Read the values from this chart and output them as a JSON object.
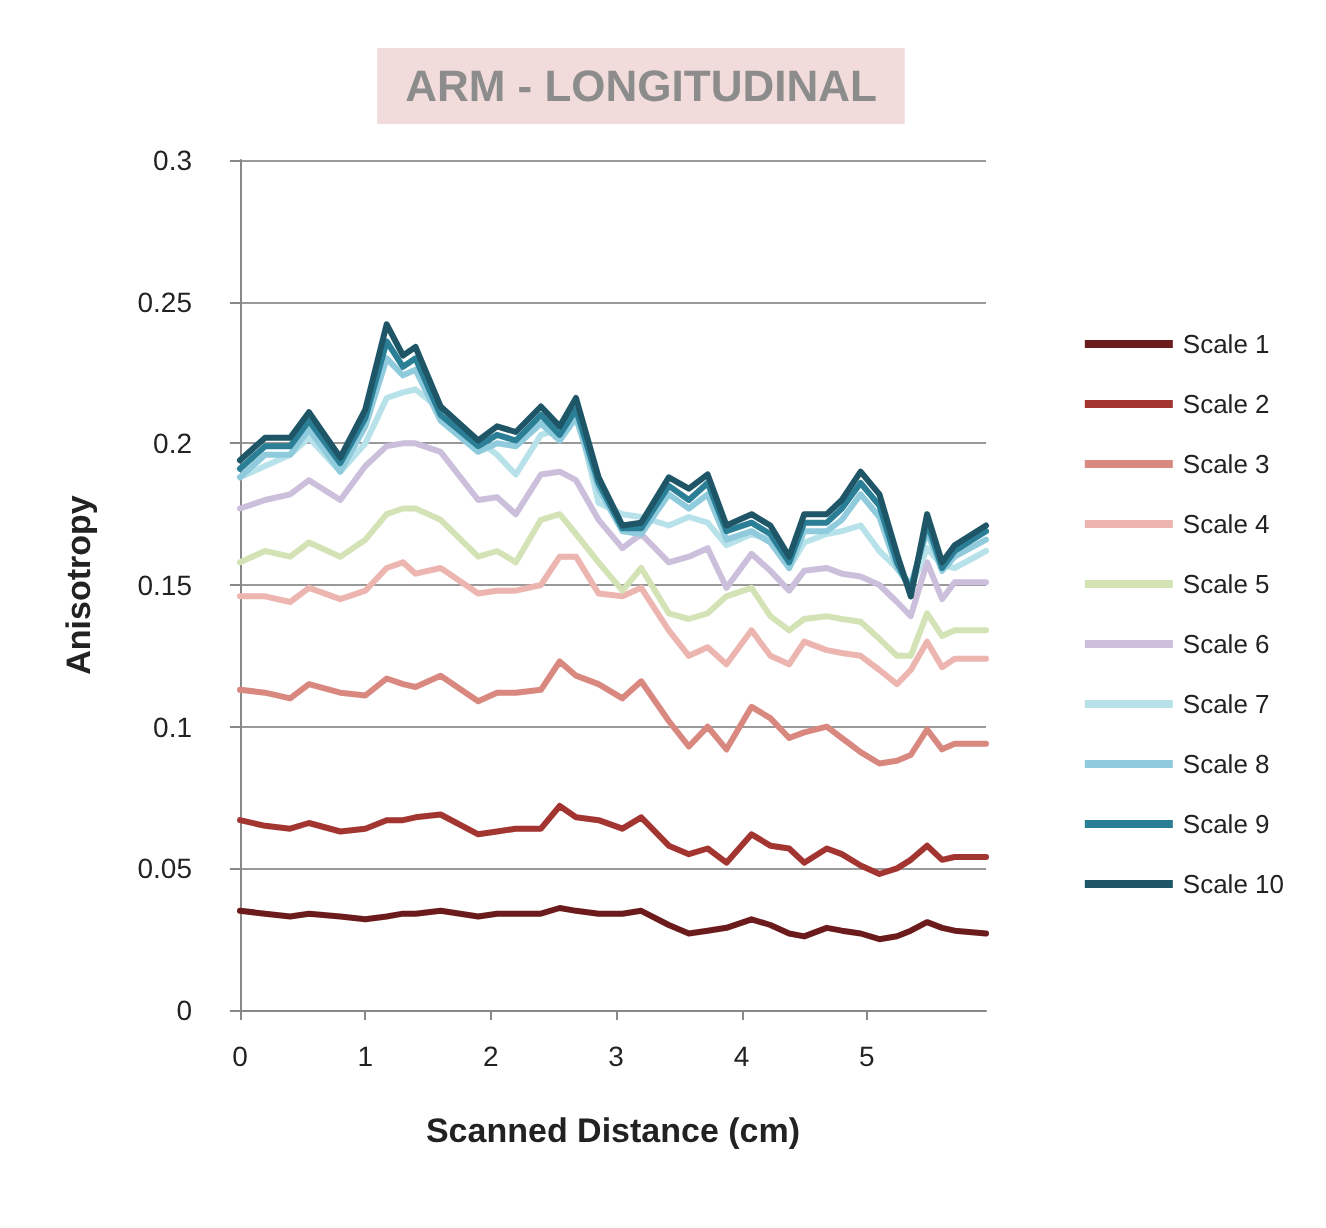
{
  "chart_data": {
    "type": "line",
    "title": "ARM - LONGITUDINAL",
    "xlabel": "Scanned Distance (cm)",
    "ylabel": "Anisotropy",
    "x": [
      0,
      0.2,
      0.4,
      0.55,
      0.8,
      1.0,
      1.17,
      1.3,
      1.4,
      1.6,
      1.9,
      2.05,
      2.2,
      2.4,
      2.55,
      2.68,
      2.86,
      3.05,
      3.2,
      3.42,
      3.58,
      3.73,
      3.88,
      4.08,
      4.23,
      4.38,
      4.5,
      4.68,
      4.8,
      4.95,
      5.1,
      5.24,
      5.35,
      5.48,
      5.6,
      5.7,
      5.95
    ],
    "xlim": [
      0,
      5.95
    ],
    "xticks": [
      0,
      1,
      2,
      3,
      4,
      5
    ],
    "ylim": [
      0,
      0.3
    ],
    "yticks": [
      0,
      0.05,
      0.1,
      0.15,
      0.2,
      0.25,
      0.3
    ],
    "grid": "y",
    "legend": "right",
    "marker": "none",
    "line_style": "solid",
    "series": [
      {
        "name": "Scale 1",
        "color": "#6b1b1b",
        "values": [
          0.035,
          0.034,
          0.033,
          0.034,
          0.033,
          0.032,
          0.033,
          0.034,
          0.034,
          0.035,
          0.033,
          0.034,
          0.034,
          0.034,
          0.036,
          0.035,
          0.034,
          0.034,
          0.035,
          0.03,
          0.027,
          0.028,
          0.029,
          0.032,
          0.03,
          0.027,
          0.026,
          0.029,
          0.028,
          0.027,
          0.025,
          0.026,
          0.028,
          0.031,
          0.029,
          0.028,
          0.027
        ]
      },
      {
        "name": "Scale 2",
        "color": "#a33530",
        "values": [
          0.067,
          0.065,
          0.064,
          0.066,
          0.063,
          0.064,
          0.067,
          0.067,
          0.068,
          0.069,
          0.062,
          0.063,
          0.064,
          0.064,
          0.072,
          0.068,
          0.067,
          0.064,
          0.068,
          0.058,
          0.055,
          0.057,
          0.052,
          0.062,
          0.058,
          0.057,
          0.052,
          0.057,
          0.055,
          0.051,
          0.048,
          0.05,
          0.053,
          0.058,
          0.053,
          0.054,
          0.054
        ]
      },
      {
        "name": "Scale 3",
        "color": "#d98880",
        "values": [
          0.113,
          0.112,
          0.11,
          0.115,
          0.112,
          0.111,
          0.117,
          0.115,
          0.114,
          0.118,
          0.109,
          0.112,
          0.112,
          0.113,
          0.123,
          0.118,
          0.115,
          0.11,
          0.116,
          0.102,
          0.093,
          0.1,
          0.092,
          0.107,
          0.103,
          0.096,
          0.098,
          0.1,
          0.096,
          0.091,
          0.087,
          0.088,
          0.09,
          0.099,
          0.092,
          0.094,
          0.094
        ]
      },
      {
        "name": "Scale 4",
        "color": "#edb5b0",
        "values": [
          0.146,
          0.146,
          0.144,
          0.149,
          0.145,
          0.148,
          0.156,
          0.158,
          0.154,
          0.156,
          0.147,
          0.148,
          0.148,
          0.15,
          0.16,
          0.16,
          0.147,
          0.146,
          0.149,
          0.134,
          0.125,
          0.128,
          0.122,
          0.134,
          0.125,
          0.122,
          0.13,
          0.127,
          0.126,
          0.125,
          0.12,
          0.115,
          0.12,
          0.13,
          0.121,
          0.124,
          0.124
        ]
      },
      {
        "name": "Scale 5",
        "color": "#d4e3b5",
        "values": [
          0.158,
          0.162,
          0.16,
          0.165,
          0.16,
          0.166,
          0.175,
          0.177,
          0.177,
          0.173,
          0.16,
          0.162,
          0.158,
          0.173,
          0.175,
          0.168,
          0.158,
          0.148,
          0.156,
          0.14,
          0.138,
          0.14,
          0.146,
          0.149,
          0.139,
          0.134,
          0.138,
          0.139,
          0.138,
          0.137,
          0.131,
          0.125,
          0.125,
          0.14,
          0.132,
          0.134,
          0.134
        ]
      },
      {
        "name": "Scale 6",
        "color": "#cbbfdc",
        "values": [
          0.177,
          0.18,
          0.182,
          0.187,
          0.18,
          0.192,
          0.199,
          0.2,
          0.2,
          0.197,
          0.18,
          0.181,
          0.175,
          0.189,
          0.19,
          0.187,
          0.173,
          0.163,
          0.168,
          0.158,
          0.16,
          0.163,
          0.149,
          0.161,
          0.155,
          0.148,
          0.155,
          0.156,
          0.154,
          0.153,
          0.15,
          0.144,
          0.139,
          0.158,
          0.145,
          0.151,
          0.151
        ]
      },
      {
        "name": "Scale 7",
        "color": "#b7e2ea",
        "values": [
          0.188,
          0.192,
          0.196,
          0.202,
          0.19,
          0.2,
          0.216,
          0.218,
          0.219,
          0.212,
          0.201,
          0.196,
          0.189,
          0.203,
          0.205,
          0.212,
          0.179,
          0.175,
          0.174,
          0.171,
          0.174,
          0.172,
          0.164,
          0.168,
          0.166,
          0.156,
          0.165,
          0.168,
          0.169,
          0.171,
          0.162,
          0.156,
          0.149,
          0.163,
          0.157,
          0.156,
          0.162
        ]
      },
      {
        "name": "Scale 8",
        "color": "#8fcbdc",
        "values": [
          0.188,
          0.196,
          0.196,
          0.205,
          0.19,
          0.206,
          0.23,
          0.224,
          0.226,
          0.208,
          0.197,
          0.2,
          0.199,
          0.207,
          0.201,
          0.209,
          0.184,
          0.169,
          0.168,
          0.182,
          0.177,
          0.182,
          0.166,
          0.169,
          0.165,
          0.156,
          0.169,
          0.169,
          0.173,
          0.182,
          0.174,
          0.156,
          0.15,
          0.169,
          0.155,
          0.16,
          0.166
        ]
      },
      {
        "name": "Scale 9",
        "color": "#2a7f96",
        "values": [
          0.191,
          0.199,
          0.199,
          0.208,
          0.193,
          0.209,
          0.236,
          0.227,
          0.23,
          0.21,
          0.199,
          0.203,
          0.201,
          0.21,
          0.203,
          0.212,
          0.186,
          0.17,
          0.17,
          0.185,
          0.18,
          0.186,
          0.169,
          0.172,
          0.168,
          0.158,
          0.172,
          0.172,
          0.177,
          0.186,
          0.178,
          0.158,
          0.148,
          0.172,
          0.156,
          0.162,
          0.169
        ]
      },
      {
        "name": "Scale 10",
        "color": "#1e5567",
        "values": [
          0.194,
          0.202,
          0.202,
          0.211,
          0.195,
          0.212,
          0.242,
          0.231,
          0.234,
          0.213,
          0.201,
          0.206,
          0.204,
          0.213,
          0.206,
          0.216,
          0.188,
          0.171,
          0.172,
          0.188,
          0.184,
          0.189,
          0.171,
          0.175,
          0.171,
          0.16,
          0.175,
          0.175,
          0.18,
          0.19,
          0.182,
          0.161,
          0.146,
          0.175,
          0.158,
          0.164,
          0.171
        ]
      }
    ]
  }
}
